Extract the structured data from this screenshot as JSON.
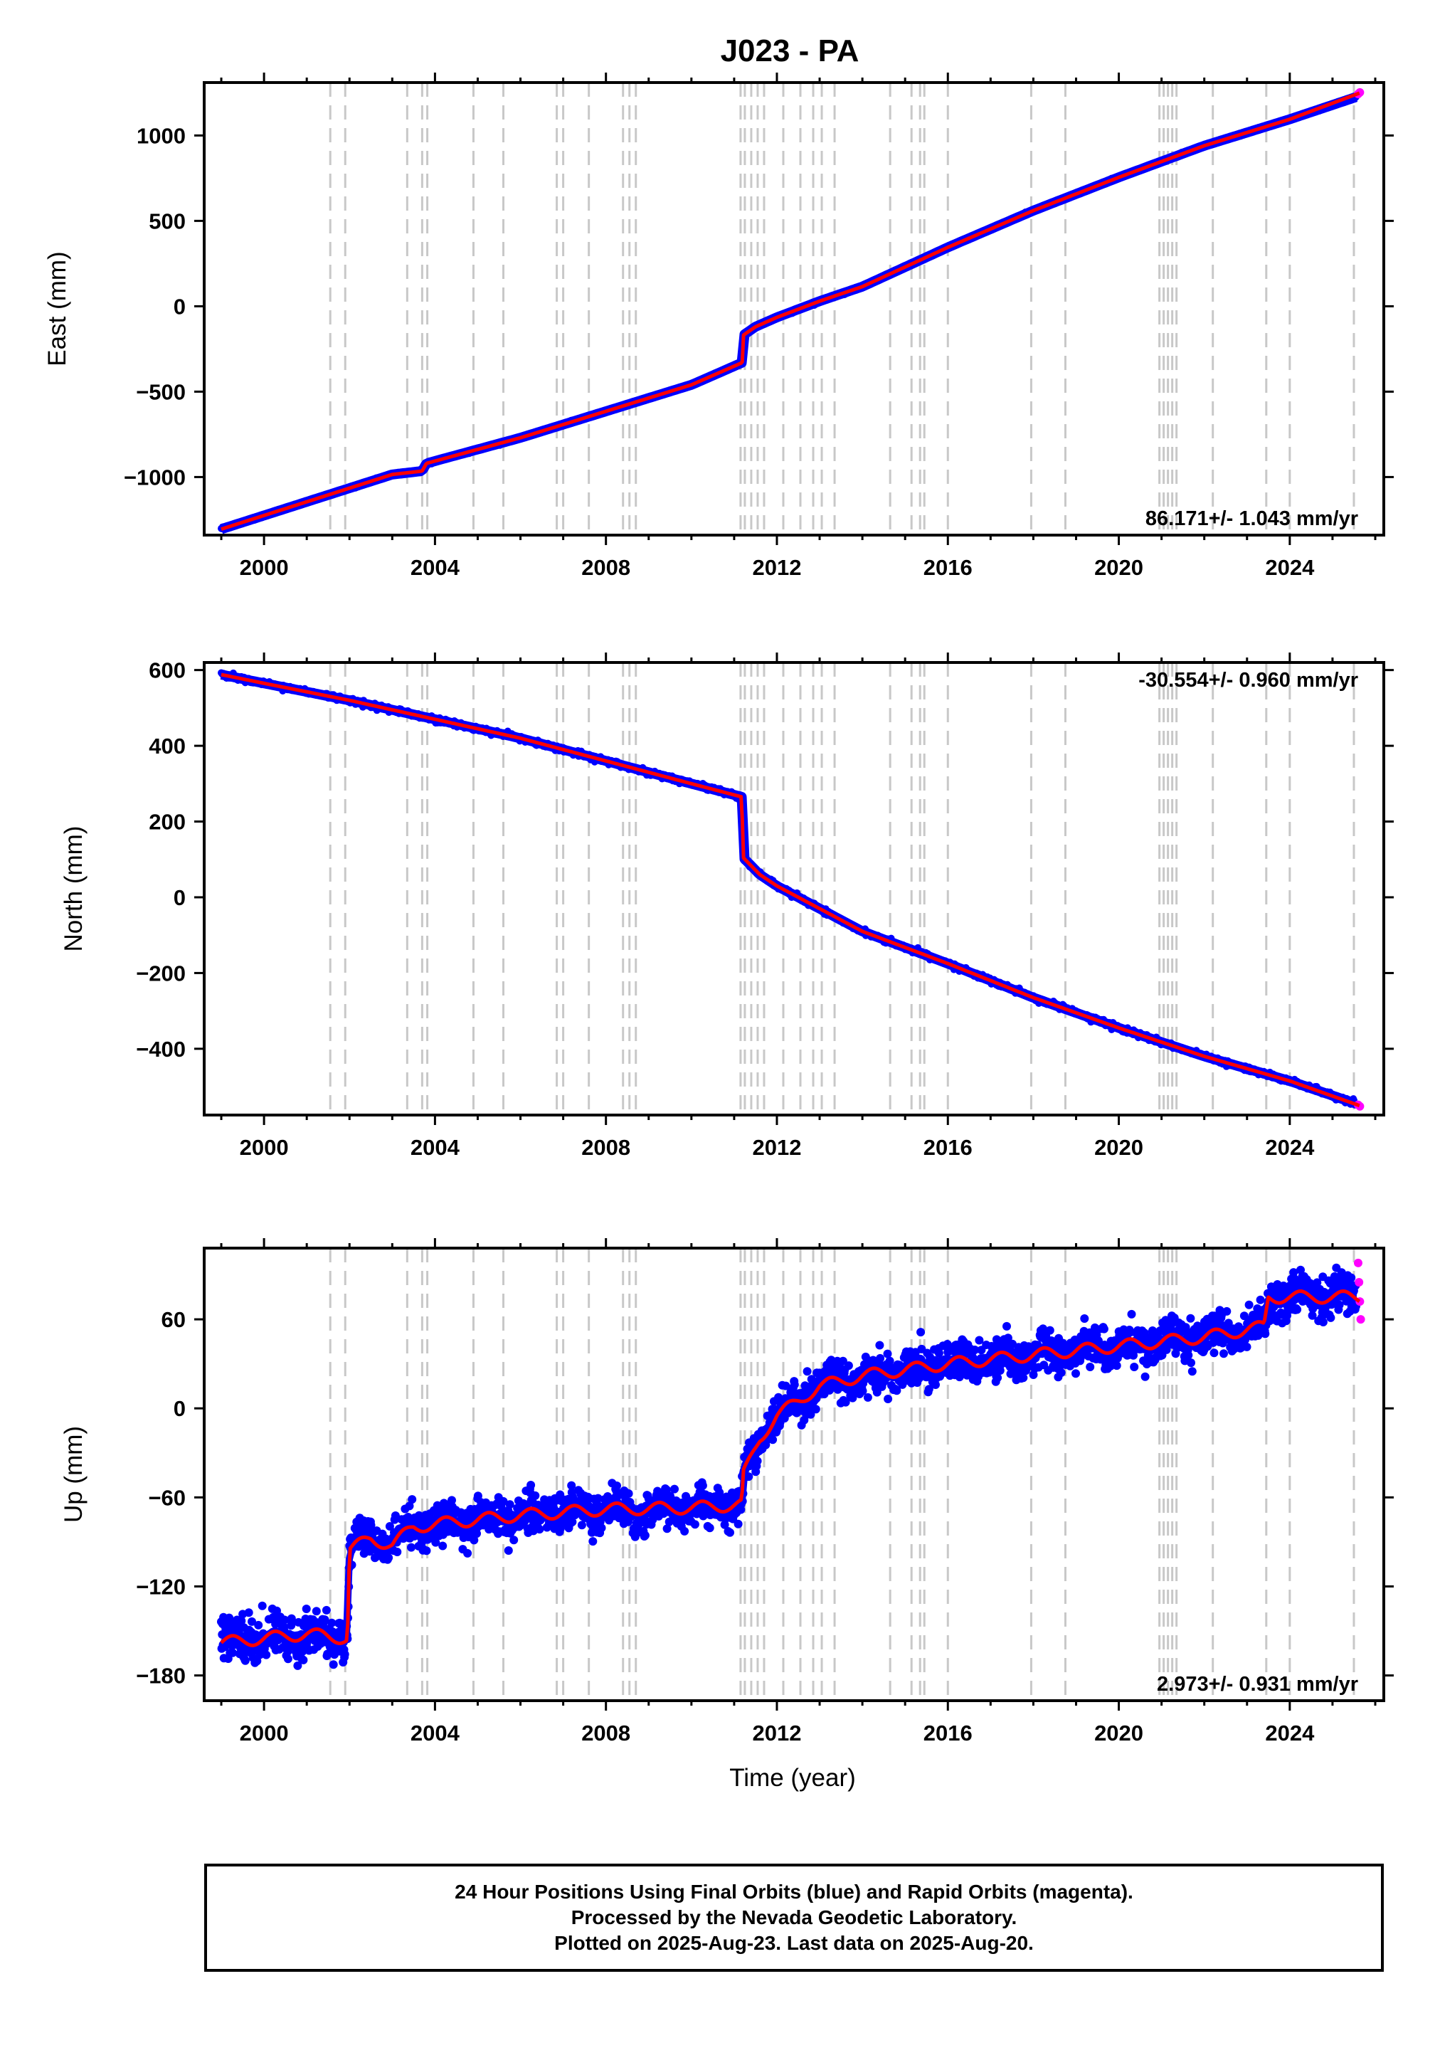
{
  "title": "J023 - PA",
  "xlabel": "Time (year)",
  "footer": {
    "line1": "24 Hour Positions Using Final Orbits (blue) and Rapid Orbits (magenta).",
    "line2": "Processed by the Nevada Geodetic Laboratory.",
    "line3": "Plotted on 2025-Aug-23. Last data on 2025-Aug-20."
  },
  "colors": {
    "final_orbits": "#0000ff",
    "rapid_orbits": "#ff00ff",
    "model": "#ff0000",
    "event_lines": "#c8c8c8"
  },
  "chart_data": [
    {
      "type": "scatter",
      "panel": "east",
      "ylabel": "East (mm)",
      "rate_label": "86.171+/- 1.043 mm/yr",
      "rate_position": "bottom-right",
      "xlim": [
        1998.6,
        2026.2
      ],
      "ylim": [
        -1340,
        1310
      ],
      "xticks": [
        "2000",
        "2004",
        "2008",
        "2012",
        "2016",
        "2020",
        "2024"
      ],
      "yticks": [
        -1000,
        -500,
        0,
        500,
        1000
      ],
      "series": [
        {
          "name": "Final Orbits (blue)",
          "x": [
            1999.0,
            2001.0,
            2003.0,
            2003.7,
            2003.8,
            2006.0,
            2008.0,
            2010.0,
            2011.19,
            2011.21,
            2011.5,
            2012.0,
            2013.0,
            2014.0,
            2016.0,
            2018.0,
            2020.0,
            2022.0,
            2024.0,
            2025.55
          ],
          "y": [
            -1305,
            -1145,
            -985,
            -965,
            -920,
            -770,
            -615,
            -460,
            -330,
            -170,
            -120,
            -65,
            30,
            115,
            345,
            560,
            755,
            940,
            1095,
            1225
          ]
        },
        {
          "name": "Rapid Orbits (magenta)",
          "x": [
            2025.6,
            2025.64
          ],
          "y": [
            1243,
            1252
          ]
        },
        {
          "name": "Model",
          "x": [
            1999.0,
            2001.0,
            2003.0,
            2003.7,
            2003.8,
            2006.0,
            2008.0,
            2010.0,
            2011.19,
            2011.21,
            2011.5,
            2012.0,
            2013.0,
            2014.0,
            2016.0,
            2018.0,
            2020.0,
            2022.0,
            2024.0,
            2025.63
          ],
          "y": [
            -1305,
            -1145,
            -985,
            -965,
            -920,
            -770,
            -615,
            -460,
            -330,
            -170,
            -120,
            -65,
            30,
            115,
            345,
            560,
            755,
            940,
            1095,
            1248
          ]
        }
      ]
    },
    {
      "type": "scatter",
      "panel": "north",
      "ylabel": "North (mm)",
      "rate_label": "-30.554+/- 0.960 mm/yr",
      "rate_position": "top-right",
      "xlim": [
        1998.6,
        2026.2
      ],
      "ylim": [
        -575,
        620
      ],
      "xticks": [
        "2000",
        "2004",
        "2008",
        "2012",
        "2016",
        "2020",
        "2024"
      ],
      "yticks": [
        -400,
        -200,
        0,
        200,
        400,
        600
      ],
      "series": [
        {
          "name": "Final Orbits (blue)",
          "x": [
            1999.0,
            2000.0,
            2002.0,
            2004.0,
            2006.0,
            2008.0,
            2010.0,
            2011.18,
            2011.21,
            2011.6,
            2012.0,
            2013.0,
            2014.0,
            2016.0,
            2018.0,
            2020.0,
            2022.0,
            2024.0,
            2025.55
          ],
          "y": [
            588,
            565,
            520,
            470,
            420,
            360,
            300,
            265,
            105,
            60,
            30,
            -30,
            -90,
            -175,
            -265,
            -345,
            -420,
            -485,
            -545
          ]
        },
        {
          "name": "Rapid Orbits (magenta)",
          "x": [
            2025.6,
            2025.64
          ],
          "y": [
            -548,
            -552
          ]
        },
        {
          "name": "Model",
          "x": [
            1999.0,
            2000.0,
            2002.0,
            2004.0,
            2006.0,
            2008.0,
            2010.0,
            2011.18,
            2011.21,
            2011.6,
            2012.0,
            2013.0,
            2014.0,
            2016.0,
            2018.0,
            2020.0,
            2022.0,
            2024.0,
            2025.63
          ],
          "y": [
            588,
            565,
            520,
            470,
            420,
            360,
            300,
            265,
            105,
            60,
            30,
            -30,
            -90,
            -175,
            -265,
            -345,
            -420,
            -485,
            -550
          ]
        }
      ]
    },
    {
      "type": "scatter",
      "panel": "up",
      "ylabel": "Up (mm)",
      "rate_label": "2.973+/- 0.931 mm/yr",
      "rate_position": "bottom-right",
      "xlim": [
        1998.6,
        2026.2
      ],
      "ylim": [
        -197,
        108
      ],
      "xticks": [
        "2000",
        "2004",
        "2008",
        "2012",
        "2016",
        "2020",
        "2024"
      ],
      "yticks": [
        -180,
        -120,
        -60,
        0,
        60
      ],
      "series": [
        {
          "name": "Final Orbits (blue)",
          "x": [
            1999.0,
            2000.0,
            2001.0,
            2001.95,
            2002.0,
            2002.5,
            2003.0,
            2003.5,
            2004.0,
            2006.0,
            2008.0,
            2010.0,
            2011.18,
            2011.22,
            2011.6,
            2012.0,
            2013.0,
            2014.0,
            2016.0,
            2018.0,
            2020.0,
            2022.0,
            2023.4,
            2023.5,
            2024.0,
            2025.55
          ],
          "y": [
            -158,
            -155,
            -152,
            -155,
            -95,
            -88,
            -92,
            -80,
            -78,
            -72,
            -68,
            -67,
            -65,
            -45,
            -20,
            -5,
            15,
            22,
            30,
            36,
            42,
            48,
            55,
            75,
            75,
            75
          ]
        },
        {
          "name": "Rapid Orbits (magenta)",
          "x": [
            2025.6,
            2025.62,
            2025.64,
            2025.66
          ],
          "y": [
            98,
            85,
            72,
            60
          ]
        },
        {
          "name": "Model",
          "x": [
            1999.0,
            2000.0,
            2001.0,
            2001.95,
            2002.0,
            2002.5,
            2003.0,
            2003.5,
            2004.0,
            2006.0,
            2008.0,
            2010.0,
            2011.18,
            2011.22,
            2011.6,
            2012.0,
            2013.0,
            2014.0,
            2016.0,
            2018.0,
            2020.0,
            2022.0,
            2023.4,
            2023.5,
            2024.0,
            2025.63
          ],
          "y": [
            -158,
            -155,
            -152,
            -155,
            -95,
            -88,
            -92,
            -80,
            -78,
            -72,
            -68,
            -67,
            -65,
            -45,
            -20,
            -5,
            15,
            22,
            30,
            36,
            42,
            48,
            55,
            75,
            75,
            75
          ]
        }
      ]
    }
  ],
  "event_lines_x": [
    2001.55,
    2001.9,
    2003.35,
    2003.7,
    2003.82,
    2004.9,
    2005.6,
    2006.85,
    2007.0,
    2007.6,
    2008.4,
    2008.55,
    2008.7,
    2011.15,
    2011.25,
    2011.4,
    2011.55,
    2011.7,
    2012.15,
    2012.55,
    2012.85,
    2013.05,
    2013.35,
    2014.65,
    2015.15,
    2015.35,
    2015.45,
    2016.0,
    2017.95,
    2018.75,
    2020.95,
    2021.05,
    2021.15,
    2021.25,
    2021.35,
    2022.2,
    2023.45,
    2024.0,
    2025.5
  ]
}
